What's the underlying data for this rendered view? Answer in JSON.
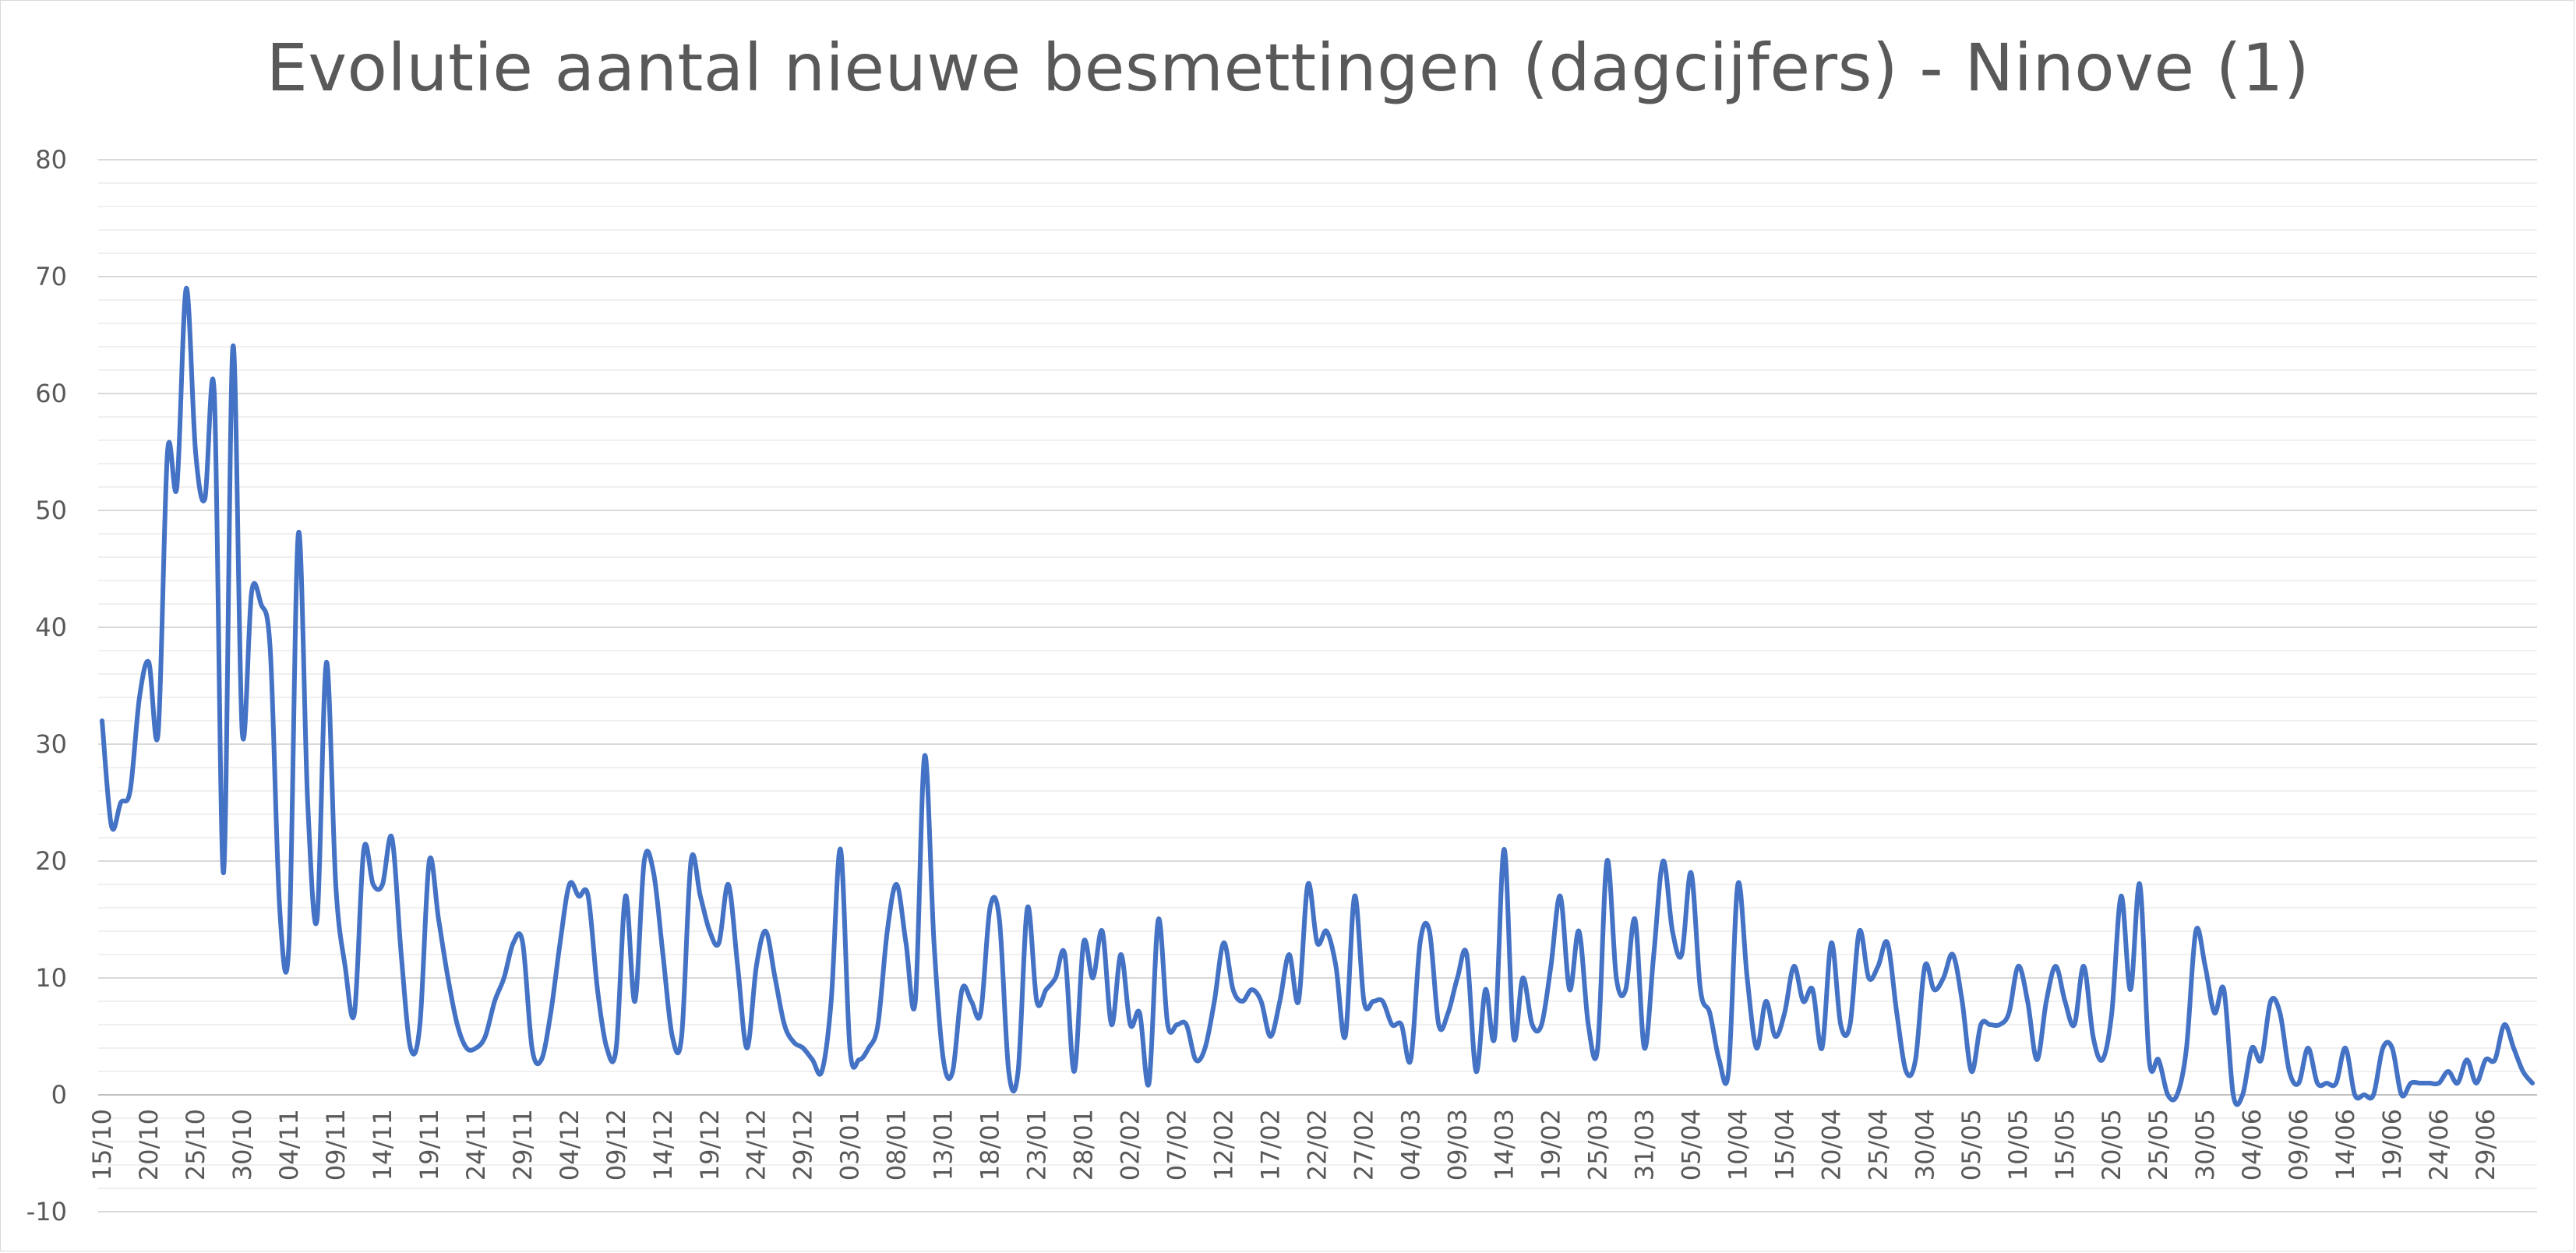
{
  "chart_data": {
    "type": "line",
    "title": "Evolutie aantal nieuwe besmettingen (dagcijfers) - Ninove (1)",
    "xlabel": "",
    "ylabel": "",
    "ylim": [
      -10,
      80
    ],
    "yticks": [
      -10,
      0,
      10,
      20,
      30,
      40,
      50,
      60,
      70,
      80
    ],
    "grid": true,
    "legend": "none",
    "line_color": "#4472c4",
    "x_tick_labels": [
      "15/10",
      "20/10",
      "25/10",
      "30/10",
      "04/11",
      "09/11",
      "14/11",
      "19/11",
      "24/11",
      "29/11",
      "04/12",
      "09/12",
      "14/12",
      "19/12",
      "24/12",
      "29/12",
      "03/01",
      "08/01",
      "13/01",
      "18/01",
      "23/01",
      "28/01",
      "02/02",
      "07/02",
      "12/02",
      "17/02",
      "22/02",
      "27/02",
      "04/03",
      "09/03",
      "14/03",
      "19/02",
      "25/03",
      "31/03",
      "05/04",
      "10/04",
      "15/04",
      "20/04",
      "25/04",
      "30/04",
      "05/05",
      "10/05",
      "15/05",
      "20/05",
      "25/05",
      "30/05",
      "04/06",
      "09/06",
      "14/06",
      "19/06",
      "24/06",
      "29/06"
    ],
    "series": [
      {
        "values": [
          32,
          23,
          25,
          26,
          34,
          37,
          31,
          55,
          52,
          69,
          55,
          51,
          60,
          19,
          64,
          31,
          43,
          42,
          38,
          16,
          13,
          48,
          25,
          15,
          37,
          18,
          11,
          7,
          21,
          18,
          18,
          22,
          12,
          4,
          6,
          20,
          15,
          10,
          6,
          4,
          4,
          5,
          8,
          10,
          13,
          13,
          4,
          3,
          7,
          13,
          18,
          17,
          17,
          9,
          4,
          4,
          17,
          8,
          20,
          19,
          12,
          5,
          5,
          20,
          17,
          14,
          13,
          18,
          11,
          4,
          11,
          14,
          10,
          6,
          4.5,
          4,
          3,
          2,
          8,
          21,
          4,
          3,
          4,
          6,
          14,
          18,
          13,
          8,
          29,
          13,
          3,
          2,
          9,
          8,
          7,
          16,
          15,
          2,
          2,
          16,
          8,
          9,
          10,
          12,
          2,
          13,
          10,
          14,
          6,
          12,
          6,
          7,
          1,
          15,
          6,
          6,
          6,
          3,
          4,
          8,
          13,
          9,
          8,
          9,
          8,
          5,
          8,
          12,
          8,
          18,
          13,
          14,
          11,
          5,
          17,
          8,
          8,
          8,
          6,
          6,
          3,
          13,
          14,
          6,
          7,
          10,
          12,
          2,
          9,
          5,
          21,
          5,
          10,
          6,
          6,
          11,
          17,
          9,
          14,
          6,
          4,
          20,
          10,
          9,
          15,
          4,
          12,
          20,
          14,
          12,
          19,
          9,
          7,
          3,
          2,
          18,
          10,
          4,
          8,
          5,
          7,
          11,
          8,
          9,
          4,
          13,
          6,
          6,
          14,
          10,
          11,
          13,
          7,
          2,
          3,
          11,
          9,
          10,
          12,
          8,
          2,
          6,
          6,
          6,
          7,
          11,
          8,
          3,
          8,
          11,
          8,
          6,
          11,
          5,
          3,
          7,
          17,
          9,
          18,
          3,
          3,
          0,
          0,
          4,
          14,
          11,
          7,
          9,
          0,
          0,
          4,
          3,
          8,
          7,
          2,
          1,
          4,
          1,
          1,
          1,
          4,
          0,
          0,
          0,
          4,
          4,
          0,
          1,
          1,
          1,
          1,
          2,
          1,
          3,
          1,
          3,
          3,
          6,
          4,
          2,
          1
        ]
      }
    ]
  }
}
